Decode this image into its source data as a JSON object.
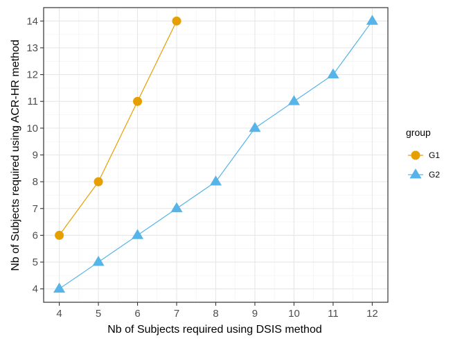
{
  "chart_data": {
    "type": "line",
    "xlabel": "Nb of Subjects required using DSIS method",
    "ylabel": "Nb of Subjects required using ACR-HR method",
    "xlim": [
      3.6,
      12.4
    ],
    "ylim": [
      3.5,
      14.5
    ],
    "x_ticks": [
      4,
      5,
      6,
      7,
      8,
      9,
      10,
      11,
      12
    ],
    "y_ticks": [
      4,
      5,
      6,
      7,
      8,
      9,
      10,
      11,
      12,
      13,
      14
    ],
    "grid": true,
    "legend": {
      "title": "group",
      "position": "right"
    },
    "series": [
      {
        "name": "G1",
        "color": "#E69F00",
        "marker": "circle",
        "x": [
          4,
          5,
          6,
          7
        ],
        "y": [
          6,
          8,
          11,
          14
        ]
      },
      {
        "name": "G2",
        "color": "#56B4E9",
        "marker": "triangle",
        "x": [
          4,
          5,
          6,
          7,
          8,
          9,
          10,
          11,
          12
        ],
        "y": [
          4,
          5,
          6,
          7,
          8,
          10,
          11,
          12,
          14
        ]
      }
    ]
  }
}
